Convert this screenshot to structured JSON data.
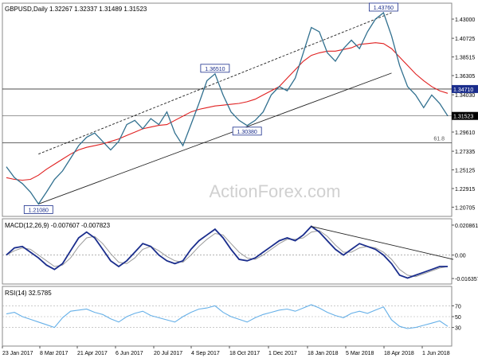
{
  "header": "GBPUSD,Daily  1.32267 1.32337 1.31489 1.31523",
  "watermark": "ActionForex.com",
  "colors": {
    "price": "#31708f",
    "sma": "#e02020",
    "macd": "#1a2d8c",
    "signal": "#9a9a9a",
    "rsi": "#66b0e8",
    "label_bg": "#1a2d8c",
    "label_text": "#ffffff",
    "grid": "#cccccc",
    "axis": "#555555"
  },
  "x_axis_ticks": [
    "23 Jan 2017",
    "8 Mar 2017",
    "21 Apr 2017",
    "6 Jun 2017",
    "20 Jul 2017",
    "4 Sep 2017",
    "18 Oct 2017",
    "1 Dec 2017",
    "18 Jan 2018",
    "5 Mar 2018",
    "18 Apr 2018",
    "1 Jun 2018"
  ],
  "chart_data": [
    {
      "type": "line",
      "name": "price",
      "series_price": [
        1.255,
        1.242,
        1.235,
        1.225,
        1.2108,
        1.225,
        1.24,
        1.25,
        1.265,
        1.28,
        1.29,
        1.295,
        1.285,
        1.275,
        1.285,
        1.305,
        1.31,
        1.3,
        1.312,
        1.305,
        1.32,
        1.295,
        1.28,
        1.305,
        1.33,
        1.357,
        1.3651,
        1.34,
        1.32,
        1.31,
        1.3038,
        1.31,
        1.32,
        1.34,
        1.35,
        1.345,
        1.36,
        1.39,
        1.42,
        1.415,
        1.39,
        1.38,
        1.395,
        1.405,
        1.395,
        1.415,
        1.43,
        1.4376,
        1.41,
        1.375,
        1.35,
        1.34,
        1.325,
        1.34,
        1.33,
        1.3152
      ],
      "sma_line": [
        1.242,
        1.24,
        1.239,
        1.24,
        1.245,
        1.252,
        1.258,
        1.264,
        1.27,
        1.275,
        1.278,
        1.28,
        1.282,
        1.285,
        1.288,
        1.292,
        1.296,
        1.3,
        1.302,
        1.304,
        1.305,
        1.31,
        1.315,
        1.32,
        1.323,
        1.325,
        1.327,
        1.328,
        1.329,
        1.33,
        1.332,
        1.335,
        1.34,
        1.345,
        1.35,
        1.36,
        1.37,
        1.38,
        1.387,
        1.39,
        1.392,
        1.392,
        1.394,
        1.396,
        1.4,
        1.401,
        1.402,
        1.401,
        1.395,
        1.385,
        1.375,
        1.365,
        1.357,
        1.35,
        1.345,
        1.342
      ],
      "y_ticks": [
        "1.43000",
        "1.40725",
        "1.38515",
        "1.36305",
        "1.34030",
        "1.31523",
        "1.29610",
        "1.27335",
        "1.25125",
        "1.22915",
        "1.20705"
      ],
      "ylim": [
        1.198,
        1.447
      ],
      "labels": [
        {
          "text": "1.43760",
          "x_index": 47,
          "value": 1.4376
        },
        {
          "text": "1.36510",
          "x_index": 26,
          "value": 1.3651
        },
        {
          "text": "1.30380",
          "x_index": 30,
          "value": 1.3038
        },
        {
          "text": "1.21080",
          "x_index": 4,
          "value": 1.2108
        }
      ],
      "current_value": "1.31523",
      "hline_value": 1.3471,
      "hline_label": "1.34710",
      "fib_value": 1.2835,
      "fib_label": "61.8",
      "lines": [
        {
          "x1": 4,
          "y1": 1.2108,
          "x2": 48,
          "y2": 1.366
        },
        {
          "x1": 4,
          "y1": 1.27,
          "x2": 48,
          "y2": 1.4376
        }
      ]
    },
    {
      "type": "line",
      "name": "macd",
      "title": "MACD(12,26,9) -0.007607 -0.007823",
      "macd": [
        0.0,
        0.005,
        0.006,
        0.002,
        -0.002,
        -0.007,
        -0.01,
        -0.006,
        0.003,
        0.012,
        0.016,
        0.012,
        0.004,
        -0.004,
        -0.008,
        -0.004,
        0.002,
        0.008,
        0.006,
        0.0,
        -0.004,
        -0.006,
        -0.004,
        0.004,
        0.01,
        0.014,
        0.018,
        0.012,
        0.004,
        -0.003,
        -0.004,
        -0.002,
        0.002,
        0.006,
        0.01,
        0.012,
        0.01,
        0.014,
        0.02,
        0.016,
        0.01,
        0.004,
        0.0,
        0.004,
        0.008,
        0.006,
        0.004,
        0.0,
        -0.006,
        -0.014,
        -0.016,
        -0.014,
        -0.012,
        -0.01,
        -0.008,
        -0.008
      ],
      "signal": [
        0.0,
        0.003,
        0.005,
        0.004,
        0.0,
        -0.004,
        -0.008,
        -0.007,
        -0.002,
        0.006,
        0.012,
        0.013,
        0.008,
        0.001,
        -0.005,
        -0.006,
        -0.002,
        0.004,
        0.006,
        0.003,
        -0.001,
        -0.004,
        -0.005,
        0.0,
        0.006,
        0.011,
        0.015,
        0.014,
        0.008,
        0.002,
        -0.002,
        -0.003,
        0.0,
        0.004,
        0.008,
        0.011,
        0.011,
        0.012,
        0.016,
        0.017,
        0.013,
        0.007,
        0.002,
        0.002,
        0.005,
        0.006,
        0.005,
        0.002,
        -0.003,
        -0.01,
        -0.014,
        -0.015,
        -0.013,
        -0.011,
        -0.009,
        -0.008
      ],
      "y_ticks": [
        "0.020861",
        "0.00",
        "-0.016357"
      ],
      "ylim": [
        -0.0185,
        0.0225
      ],
      "zero_value": 0.0,
      "trend_line": {
        "x1": 38,
        "y1": 0.02,
        "x2": 56,
        "y2": -0.003
      }
    },
    {
      "type": "line",
      "name": "rsi",
      "title": "RSI(14) 32.5785",
      "rsi": [
        55,
        58,
        50,
        45,
        40,
        35,
        30,
        48,
        60,
        62,
        64,
        58,
        54,
        46,
        40,
        50,
        56,
        60,
        52,
        48,
        44,
        40,
        50,
        58,
        64,
        66,
        70,
        58,
        50,
        45,
        40,
        48,
        54,
        58,
        62,
        64,
        60,
        66,
        72,
        66,
        58,
        52,
        48,
        56,
        60,
        56,
        62,
        68,
        44,
        32,
        28,
        30,
        34,
        38,
        42,
        32
      ],
      "y_ticks": [
        "70",
        "50",
        "30"
      ],
      "ylim": [
        0,
        100
      ],
      "levels": [
        70,
        50,
        30
      ]
    }
  ]
}
